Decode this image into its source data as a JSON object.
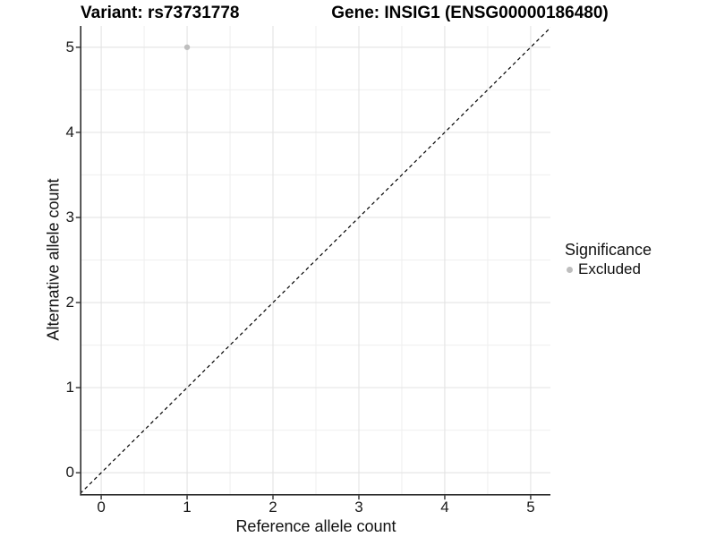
{
  "chart_data": {
    "type": "scatter",
    "titles": {
      "left": "Variant: rs73731778",
      "right": "Gene: INSIG1 (ENSG00000186480)"
    },
    "xlabel": "Reference allele count",
    "ylabel": "Alternative allele count",
    "xlim": [
      -0.23,
      5.23
    ],
    "ylim": [
      -0.25,
      5.25
    ],
    "x_ticks": [
      0,
      1,
      2,
      3,
      4,
      5
    ],
    "y_ticks": [
      0,
      1,
      2,
      3,
      4,
      5
    ],
    "x_minor_ticks": [
      0.5,
      1.5,
      2.5,
      3.5,
      4.5
    ],
    "y_minor_ticks": [
      0.5,
      1.5,
      2.5,
      3.5,
      4.5
    ],
    "grid": "on",
    "series": [
      {
        "name": "Excluded",
        "marker": "circle",
        "color": "#bebebe",
        "points": [
          {
            "x": 1,
            "y": 5
          }
        ]
      }
    ],
    "identity_line": {
      "style": "dashed",
      "color": "#000000",
      "from": [
        -0.3,
        -0.3
      ],
      "to": [
        5.4,
        5.4
      ]
    },
    "legend": {
      "title": "Significance",
      "position": "right",
      "entries": [
        {
          "label": "Excluded",
          "color": "#bebebe",
          "marker": "circle"
        }
      ]
    },
    "colors": {
      "grid_major": "#e3e3e3",
      "grid_minor": "#efefef",
      "axis": "#2e2e2e",
      "tick_text": "#1a1a1a"
    }
  }
}
